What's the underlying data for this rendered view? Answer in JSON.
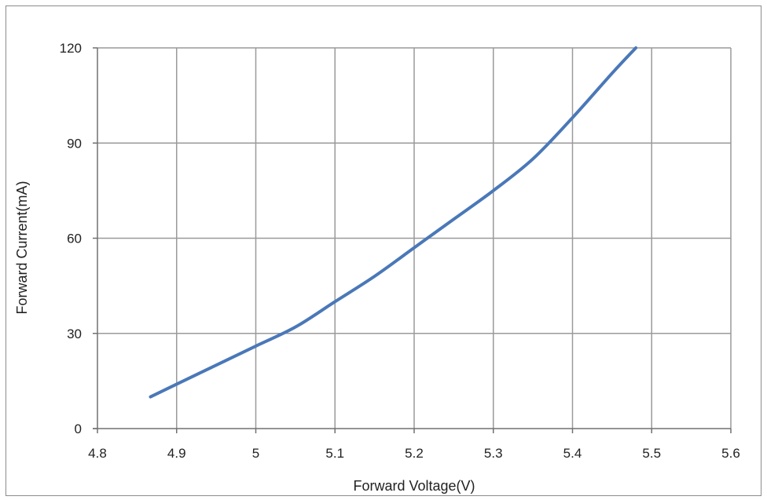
{
  "chart_data": {
    "type": "line",
    "title": "",
    "xlabel": "Forward Voltage(V)",
    "ylabel": "Forward Current(mA)",
    "xlim": [
      4.8,
      5.6
    ],
    "ylim": [
      0,
      120
    ],
    "xticks": [
      4.8,
      4.9,
      5.0,
      5.1,
      5.2,
      5.3,
      5.4,
      5.5,
      5.6
    ],
    "xtick_labels": [
      "4.8",
      "4.9",
      "5",
      "5.1",
      "5.2",
      "5.3",
      "5.4",
      "5.5",
      "5.6"
    ],
    "yticks": [
      0,
      30,
      60,
      90,
      120
    ],
    "ytick_labels": [
      "0",
      "30",
      "60",
      "90",
      "120"
    ],
    "grid": true,
    "legend": "none",
    "series": [
      {
        "color": "#4a78b8",
        "x": [
          4.867,
          4.9,
          4.95,
          5.0,
          5.05,
          5.1,
          5.15,
          5.2,
          5.25,
          5.3,
          5.35,
          5.4,
          5.45,
          5.48
        ],
        "y": [
          10,
          14,
          20,
          26,
          32,
          40,
          48,
          57,
          66,
          75,
          85,
          98,
          112,
          120
        ]
      }
    ]
  }
}
